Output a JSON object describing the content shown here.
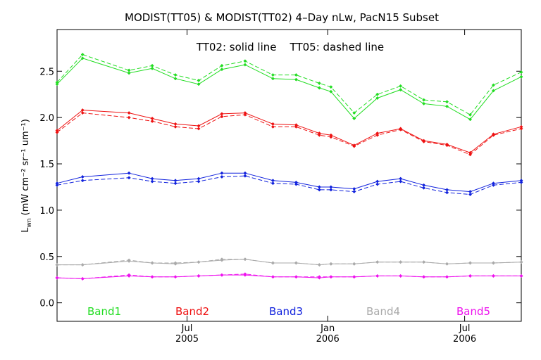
{
  "chart_data": {
    "type": "line",
    "title": "MODIST(TT05) & MODIST(TT02) 4–Day nLw, PacN15 Subset",
    "annotation": "TT02: solid line    TT05: dashed line",
    "ylabel_main": "L",
    "ylabel_sub": "wn",
    "ylabel_units": "(mW cm⁻² sr⁻¹ um⁻¹)",
    "ylim": [
      -0.2,
      2.95
    ],
    "yticks": [
      "0.0",
      "0.5",
      "1.0",
      "1.5",
      "2.0",
      "2.5"
    ],
    "xlim": [
      0,
      100
    ],
    "xticks": [
      {
        "pos": 28.0,
        "top": "Jul",
        "bottom": "2005"
      },
      {
        "pos": 58.3,
        "top": "Jan",
        "bottom": "2006"
      },
      {
        "pos": 87.8,
        "top": "Jul",
        "bottom": "2006"
      }
    ],
    "grid": false,
    "legend_position": "bottom",
    "x": [
      0,
      5.5,
      15.5,
      20.5,
      25.5,
      30.5,
      35.5,
      40.5,
      46.5,
      51.5,
      56.5,
      59,
      64,
      69,
      74,
      79,
      84,
      89,
      94,
      100
    ],
    "series": [
      {
        "name": "Band1",
        "color": "#22dd22",
        "solid": [
          2.36,
          2.64,
          2.48,
          2.53,
          2.42,
          2.36,
          2.52,
          2.57,
          2.42,
          2.41,
          2.32,
          2.28,
          1.99,
          2.21,
          2.3,
          2.15,
          2.12,
          1.98,
          2.29,
          2.44
        ],
        "dashed": [
          2.38,
          2.68,
          2.51,
          2.56,
          2.46,
          2.4,
          2.56,
          2.61,
          2.46,
          2.46,
          2.37,
          2.33,
          2.05,
          2.25,
          2.34,
          2.19,
          2.17,
          2.03,
          2.35,
          2.49
        ]
      },
      {
        "name": "Band2",
        "color": "#ee1111",
        "solid": [
          1.86,
          2.08,
          2.05,
          1.99,
          1.93,
          1.91,
          2.04,
          2.05,
          1.93,
          1.92,
          1.83,
          1.81,
          1.7,
          1.83,
          1.88,
          1.75,
          1.71,
          1.62,
          1.82,
          1.9
        ],
        "dashed": [
          1.84,
          2.05,
          2.0,
          1.96,
          1.9,
          1.88,
          2.01,
          2.03,
          1.9,
          1.9,
          1.81,
          1.79,
          1.69,
          1.81,
          1.87,
          1.74,
          1.7,
          1.6,
          1.81,
          1.88
        ]
      },
      {
        "name": "Band3",
        "color": "#1122dd",
        "solid": [
          1.29,
          1.36,
          1.4,
          1.34,
          1.32,
          1.34,
          1.4,
          1.4,
          1.32,
          1.3,
          1.25,
          1.25,
          1.23,
          1.31,
          1.34,
          1.27,
          1.22,
          1.2,
          1.29,
          1.32
        ],
        "dashed": [
          1.27,
          1.32,
          1.35,
          1.31,
          1.29,
          1.31,
          1.36,
          1.37,
          1.29,
          1.28,
          1.22,
          1.22,
          1.2,
          1.28,
          1.31,
          1.24,
          1.19,
          1.17,
          1.27,
          1.3
        ]
      },
      {
        "name": "Band4",
        "color": "#aaaaaa",
        "solid": [
          0.41,
          0.41,
          0.45,
          0.43,
          0.42,
          0.44,
          0.46,
          0.47,
          0.43,
          0.43,
          0.41,
          0.42,
          0.42,
          0.44,
          0.44,
          0.44,
          0.42,
          0.43,
          0.43,
          0.44
        ],
        "dashed": [
          0.41,
          0.41,
          0.46,
          0.43,
          0.43,
          0.44,
          0.47,
          0.47,
          0.43,
          0.43,
          0.41,
          0.42,
          0.42,
          0.44,
          0.44,
          0.44,
          0.42,
          0.43,
          0.43,
          0.44
        ]
      },
      {
        "name": "Band5",
        "color": "#ee11ee",
        "solid": [
          0.27,
          0.26,
          0.29,
          0.28,
          0.28,
          0.29,
          0.3,
          0.3,
          0.28,
          0.28,
          0.27,
          0.28,
          0.28,
          0.29,
          0.29,
          0.28,
          0.28,
          0.29,
          0.29,
          0.29
        ],
        "dashed": [
          0.27,
          0.26,
          0.3,
          0.28,
          0.28,
          0.29,
          0.3,
          0.31,
          0.28,
          0.28,
          0.28,
          0.28,
          0.28,
          0.29,
          0.29,
          0.28,
          0.28,
          0.29,
          0.29,
          0.29
        ]
      }
    ],
    "legend": [
      {
        "label": "Band1",
        "color": "#22dd22"
      },
      {
        "label": "Band2",
        "color": "#ee1111"
      },
      {
        "label": "Band3",
        "color": "#1122dd"
      },
      {
        "label": "Band4",
        "color": "#aaaaaa"
      },
      {
        "label": "Band5",
        "color": "#ee11ee"
      }
    ]
  }
}
